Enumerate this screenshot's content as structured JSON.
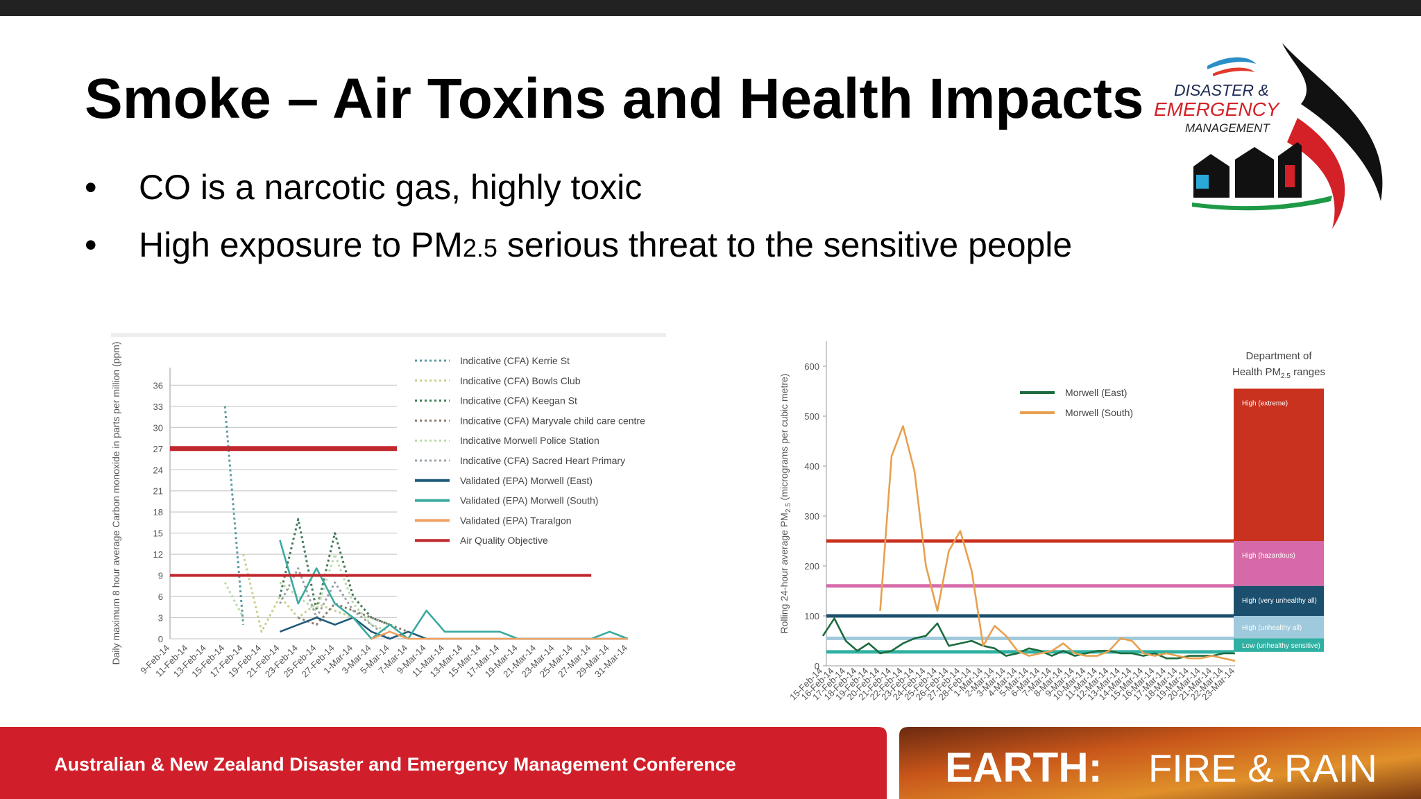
{
  "slide": {
    "title": "Smoke – Air Toxins and Health Impacts",
    "bullets": [
      [
        "CO is a narcotic gas, highly toxic"
      ],
      [
        "High exposure to PM",
        "2.5",
        " serious threat to the sensitive people"
      ]
    ],
    "logo": [
      "DISASTER &",
      "EMERGENCY",
      "MANAGEMENT"
    ],
    "footer": {
      "conference": "Australian & New Zealand Disaster and Emergency Management Conference",
      "theme": [
        "EARTH:",
        "FIRE & RAIN"
      ]
    }
  },
  "chart_data": [
    {
      "type": "line",
      "y_label": "Daily maximum 8 hour average Carbon monoxide in parts per million (ppm)",
      "categories": [
        "9-Feb-14",
        "11-Feb-14",
        "13-Feb-14",
        "15-Feb-14",
        "17-Feb-14",
        "19-Feb-14",
        "21-Feb-14",
        "23-Feb-14",
        "25-Feb-14",
        "27-Feb-14",
        "1-Mar-14",
        "3-Mar-14",
        "5-Mar-14",
        "7-Mar-14",
        "9-Mar-14",
        "11-Mar-14",
        "13-Mar-14",
        "15-Mar-14",
        "17-Mar-14",
        "19-Mar-14",
        "21-Mar-14",
        "23-Mar-14",
        "25-Mar-14",
        "27-Mar-14",
        "29-Mar-14",
        "31-Mar-14"
      ],
      "ylim": [
        0,
        38.5
      ],
      "yticks": [
        0,
        3,
        6,
        9,
        12,
        15,
        18,
        21,
        24,
        27,
        30,
        33,
        36
      ],
      "grid": true,
      "series": [
        {
          "name": "Indicative (CFA) Kerrie St",
          "color": "#5a9aa0",
          "style": "dotted",
          "values": [
            null,
            null,
            null,
            33,
            2,
            null,
            null,
            null,
            null,
            null,
            null,
            null,
            null,
            null,
            null,
            null,
            null,
            null,
            null,
            null,
            null,
            null,
            null,
            null,
            null,
            null
          ]
        },
        {
          "name": "Indicative (CFA) Bowls Club",
          "color": "#c9cf8a",
          "style": "dotted",
          "values": [
            null,
            null,
            null,
            null,
            12,
            1,
            6,
            3,
            5,
            4,
            3,
            null,
            null,
            null,
            null,
            null,
            null,
            null,
            null,
            null,
            null,
            null,
            null,
            null,
            null,
            null
          ]
        },
        {
          "name": "Indicative (CFA) Keegan St",
          "color": "#3f7a58",
          "style": "dotted",
          "values": [
            null,
            null,
            null,
            null,
            null,
            null,
            6,
            17,
            4,
            15,
            6,
            3,
            2,
            null,
            null,
            null,
            null,
            null,
            null,
            null,
            null,
            null,
            null,
            null,
            null,
            null
          ]
        },
        {
          "name": "Indicative (CFA) Maryvale child care centre",
          "color": "#8a7b6e",
          "style": "dotted",
          "values": [
            null,
            null,
            null,
            null,
            null,
            null,
            null,
            3,
            2,
            5,
            4,
            3,
            2,
            1,
            null,
            null,
            null,
            null,
            null,
            null,
            null,
            null,
            null,
            null,
            null,
            null
          ]
        },
        {
          "name": "Indicative Morwell Police Station",
          "color": "#b9d9a8",
          "style": "dotted",
          "values": [
            null,
            null,
            null,
            8,
            3,
            null,
            8,
            6,
            4,
            12,
            5,
            2,
            1,
            null,
            null,
            null,
            null,
            null,
            null,
            null,
            null,
            null,
            null,
            null,
            null,
            null
          ]
        },
        {
          "name": "Indicative (CFA) Sacred Heart Primary",
          "color": "#9aa0a6",
          "style": "dotted",
          "values": [
            null,
            null,
            null,
            null,
            null,
            null,
            5,
            10,
            3,
            8,
            4,
            2,
            0,
            null,
            null,
            null,
            null,
            null,
            null,
            null,
            null,
            null,
            null,
            null,
            null,
            null
          ]
        },
        {
          "name": "Validated (EPA) Morwell (East)",
          "color": "#1f5a7a",
          "style": "solid",
          "values": [
            null,
            null,
            null,
            null,
            null,
            null,
            1,
            2,
            3,
            2,
            3,
            1,
            0,
            1,
            0,
            0,
            0,
            0,
            0,
            0,
            0,
            0,
            0,
            0,
            0,
            0
          ]
        },
        {
          "name": "Validated (EPA) Morwell (South)",
          "color": "#3aaa9e",
          "style": "solid",
          "values": [
            null,
            null,
            null,
            null,
            null,
            null,
            14,
            5,
            10,
            5,
            3,
            0,
            2,
            0,
            4,
            1,
            1,
            1,
            1,
            0,
            0,
            0,
            0,
            0,
            1,
            0
          ]
        },
        {
          "name": "Validated (EPA) Traralgon",
          "color": "#f0a060",
          "style": "solid",
          "values": [
            null,
            null,
            null,
            null,
            null,
            null,
            null,
            null,
            null,
            null,
            null,
            0,
            1,
            0,
            0,
            0,
            0,
            0,
            0,
            0,
            0,
            0,
            0,
            0,
            0,
            0
          ]
        },
        {
          "name": "Air Quality Objective",
          "color": "#c0282d",
          "style": "reference",
          "reference_lines": [
            27,
            9
          ]
        }
      ]
    },
    {
      "type": "line",
      "y_label": [
        "Rolling 24-hour average PM",
        "2.5",
        " (micrograms per cubic metre)"
      ],
      "categories": [
        "15-Feb-14",
        "16-Feb-14",
        "17-Feb-14",
        "18-Feb-14",
        "19-Feb-14",
        "20-Feb-14",
        "21-Feb-14",
        "22-Feb-14",
        "23-Feb-14",
        "24-Feb-14",
        "25-Feb-14",
        "26-Feb-14",
        "27-Feb-14",
        "28-Feb-14",
        "1-Mar-14",
        "2-Mar-14",
        "3-Mar-14",
        "4-Mar-14",
        "5-Mar-14",
        "6-Mar-14",
        "7-Mar-14",
        "8-Mar-14",
        "9-Mar-14",
        "10-Mar-14",
        "11-Mar-14",
        "12-Mar-14",
        "13-Mar-14",
        "14-Mar-14",
        "15-Mar-14",
        "16-Mar-14",
        "17-Mar-14",
        "18-Mar-14",
        "19-Mar-14",
        "20-Mar-14",
        "21-Mar-14",
        "22-Mar-14",
        "23-Mar-14"
      ],
      "ylim": [
        0,
        650
      ],
      "yticks": [
        0,
        100,
        200,
        300,
        400,
        500,
        600
      ],
      "grid": false,
      "series": [
        {
          "name": "Morwell (East)",
          "color": "#1d6b3e",
          "style": "solid",
          "values": [
            60,
            95,
            50,
            30,
            45,
            25,
            30,
            45,
            55,
            60,
            85,
            40,
            45,
            50,
            40,
            35,
            20,
            25,
            35,
            30,
            20,
            30,
            20,
            25,
            30,
            30,
            25,
            25,
            20,
            25,
            15,
            15,
            20,
            20,
            20,
            25,
            25
          ]
        },
        {
          "name": "Morwell (South)",
          "color": "#e8a050",
          "style": "solid",
          "values": [
            null,
            null,
            null,
            null,
            null,
            110,
            420,
            480,
            390,
            200,
            110,
            230,
            270,
            190,
            40,
            80,
            60,
            30,
            20,
            25,
            30,
            45,
            25,
            20,
            20,
            30,
            55,
            50,
            25,
            20,
            25,
            20,
            15,
            15,
            20,
            15,
            10
          ]
        }
      ],
      "ranges_title": [
        "Department of",
        "Health PM",
        "2.5",
        " ranges"
      ],
      "ranges": [
        {
          "label": "High (extreme)",
          "from": 250,
          "to": 555,
          "color": "#c8321e"
        },
        {
          "label": "High (hazardous)",
          "from": 160,
          "to": 250,
          "color": "#d66aa8"
        },
        {
          "label": "High (very unhealthy all)",
          "from": 100,
          "to": 160,
          "color": "#1c4f6e"
        },
        {
          "label": "High (unhealthy all)",
          "from": 55,
          "to": 100,
          "color": "#9fc9dc"
        },
        {
          "label": "Low (unhealthy sensitive)",
          "from": 28,
          "to": 55,
          "color": "#2fb0a2"
        }
      ]
    }
  ]
}
